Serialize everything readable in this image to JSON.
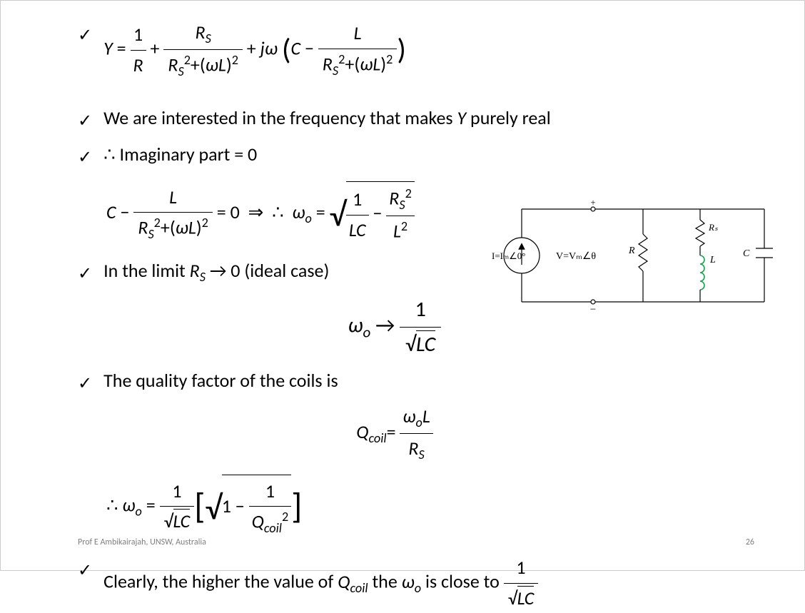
{
  "equations": {
    "eq1_html": "<span class='italic'>Y</span> = <span style='display:inline-block;vertical-align:middle;text-align:center;'><span style='display:block;border-bottom:1.5px solid #000;padding:0 4px;'>1</span><span style='display:block;padding:0 4px;'><span class='italic'>R</span></span></span> + <span style='display:inline-block;vertical-align:middle;text-align:center;'><span style='display:block;border-bottom:1.5px solid #000;padding:0 6px;'><span class='italic'>R</span><span class='sub italic'>S</span></span><span style='display:block;padding:0 6px;'><span class='italic'>R</span><span class='sub italic'>S</span><span class='sup'>2</span>+(<span class='italic'>ωL</span>)<span class='sup'>2</span></span></span> + <span class='italic'>jω</span> <span style='font-size:1.6em;vertical-align:middle;'>(</span><span class='italic'>C</span> − <span style='display:inline-block;vertical-align:middle;text-align:center;'><span style='display:block;border-bottom:1.5px solid #000;padding:0 6px;'><span class='italic'>L</span></span><span style='display:block;padding:0 6px;'><span class='italic'>R</span><span class='sub italic'>S</span><span class='sup'>2</span>+(<span class='italic'>ωL</span>)<span class='sup'>2</span></span></span><span style='font-size:1.6em;vertical-align:middle;'>)</span>",
    "eq2_html": "<span class='italic'>C</span>&nbsp;−&nbsp;<span style='display:inline-block;vertical-align:middle;text-align:center;'><span style='display:block;border-bottom:1.5px solid #000;padding:0 6px;'><span class='italic'>L</span></span><span style='display:block;padding:0 6px;'><span class='italic'>R</span><span class='sub italic'>S</span><span class='sup'>2</span>+(<span class='italic'>ωL</span>)<span class='sup'>2</span></span></span>&nbsp;= 0&nbsp;&nbsp;⇒&nbsp;&nbsp;∴&nbsp;&nbsp;<span class='italic'>ω</span><span class='sub italic'>o</span>&nbsp;=&nbsp;<span style='display:inline-block;vertical-align:middle;'><span style='font-size:1.8em;vertical-align:middle;'>√</span><span style='display:inline-block;border-top:1.5px solid #000;padding-top:2px;'><span style='display:inline-block;vertical-align:middle;text-align:center;'><span style='display:block;border-bottom:1.5px solid #000;padding:0 4px;'>1</span><span style='display:block;padding:0 4px;'><span class='italic'>LC</span></span></span> − <span style='display:inline-block;vertical-align:middle;text-align:center;'><span style='display:block;border-bottom:1.5px solid #000;padding:0 4px;'><span class='italic'>R</span><span class='sub italic'>S</span><span class='sup'>2</span></span><span style='display:block;padding:0 4px;'><span class='italic'>L</span><span class='sup'>2</span></span></span></span></span>",
    "eq3_html": "<span class='italic'>ω</span><span class='sub italic'>o</span>&nbsp;→&nbsp;<span style='display:inline-block;vertical-align:middle;text-align:center;'><span style='display:block;border-bottom:1.5px solid #000;padding:0 8px;'>1</span><span style='display:block;padding:0 8px;'>√<span style='border-top:1.5px solid #000;'><span class='italic'>LC</span></span></span></span>",
    "eq4_html": "<span class='italic'>Q</span><span class='sub italic'>coil</span>= <span style='display:inline-block;vertical-align:middle;text-align:center;'><span style='display:block;border-bottom:1.5px solid #000;padding:0 4px;'><span class='italic'>ω</span><span class='sub italic'>o</span><span class='italic'>L</span></span><span style='display:block;padding:0 4px;'><span class='italic'>R</span><span class='sub italic'>S</span></span></span>",
    "eq5_html": "∴&nbsp;<span class='italic'>ω</span><span class='sub italic'>o</span>&nbsp;=&nbsp;<span style='display:inline-block;vertical-align:middle;text-align:center;'><span style='display:block;border-bottom:1.5px solid #000;padding:0 6px;'>1</span><span style='display:block;padding:0 6px;'>√<span style='border-top:1.5px solid #000;'><span class='italic'>LC</span></span></span></span><span style='font-size:1.9em;vertical-align:middle;'>[</span><span style='display:inline-block;vertical-align:middle;'><span style='font-size:1.8em;vertical-align:middle;'>√</span><span style='display:inline-block;border-top:1.5px solid #000;padding-top:2px;'>1 − <span style='display:inline-block;vertical-align:middle;text-align:center;'><span style='display:block;border-bottom:1.5px solid #000;padding:0 4px;'>1</span><span style='display:block;padding:0 4px;'><span class='italic'>Q</span><span class='sub italic'>coil</span><span class='sup'>2</span></span></span></span></span><span style='font-size:1.9em;vertical-align:middle;'>]</span>",
    "inline_q_html": "<span class='italic'>Q</span><span class='sub italic'>coil</span>",
    "inline_wo_html": "<span class='italic'>ω</span><span class='sub italic'>o</span>",
    "inline_1sqrtlc_html": "<span style='display:inline-block;vertical-align:middle;text-align:center;'><span style='display:block;border-bottom:1.5px solid #000;padding:0 6px;'>1</span><span style='display:block;padding:0 6px;'>√<span style='border-top:1.5px solid #000;'><span class='italic'>LC</span></span></span></span>",
    "inline_Y_html": "<span class='italic'>Y</span>",
    "inline_Rs0_html": "<span class='italic'>R</span><span class='sub italic'>S</span> → 0"
  },
  "lines": {
    "l1_pre": "We are interested in the frequency that makes ",
    "l1_post": " purely real",
    "l2": "∴ Imaginary part = 0",
    "l3_pre": "In the limit ",
    "l3_post": " (ideal case)",
    "l4": "The quality factor of the coils is",
    "l5_a": "Clearly, the higher the value of ",
    "l5_b": " the ",
    "l5_c": " is close to "
  },
  "circuit": {
    "source_label": "I=Iₘ∠0°",
    "voltage_label": "V=Vₘ∠θ",
    "R_label": "R",
    "Rs_label": "Rₛ",
    "L_label": "L",
    "C_label": "C",
    "plus": "+",
    "minus": "−",
    "wire_color": "#000000",
    "coil_color": "#1fa050"
  },
  "footer": {
    "author": "Prof  E  Ambikairajah, UNSW, Australia",
    "page": "26"
  },
  "checkmark": "✓"
}
